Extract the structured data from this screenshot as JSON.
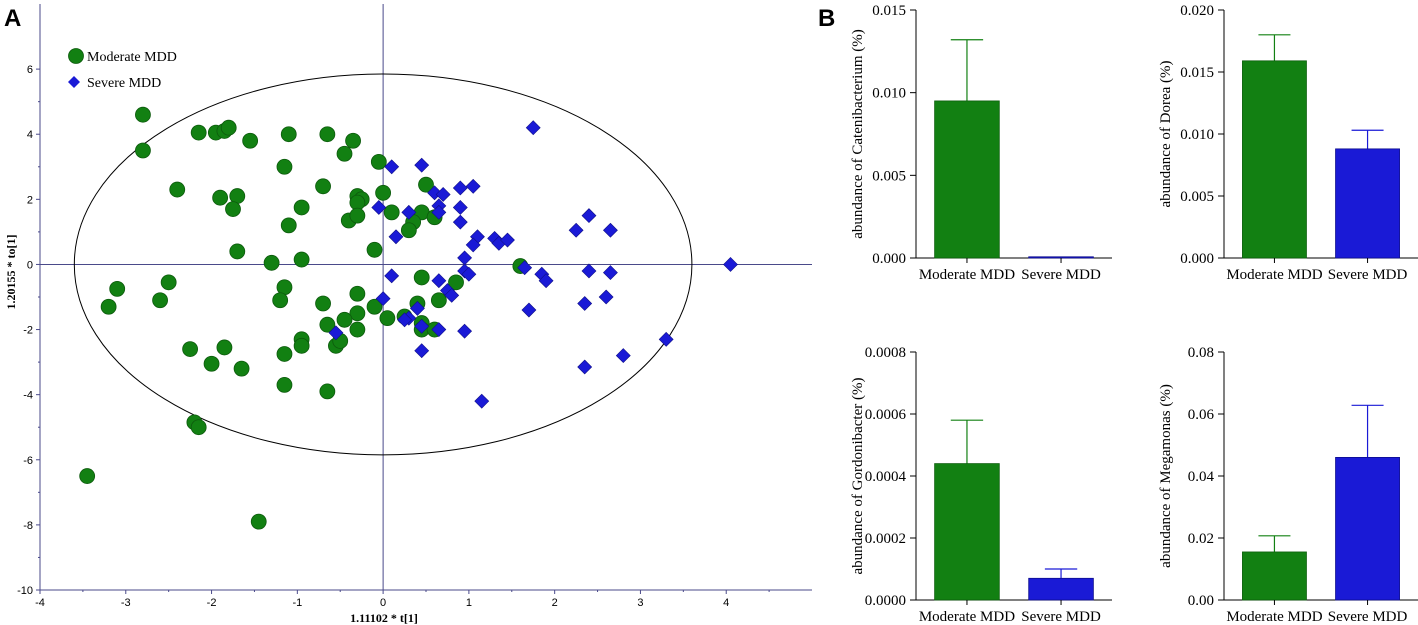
{
  "panel_labels": {
    "a": "A",
    "b": "B"
  },
  "colors": {
    "moderate": "#128012",
    "severe": "#1a1ad6",
    "axis": "#4a4a8a"
  },
  "chart_data": [
    {
      "type": "scatter",
      "title": "",
      "xlabel": "1.11102 * t[1]",
      "ylabel": "1.20155 * to[1]",
      "xlim": [
        -4,
        5
      ],
      "ylim": [
        -10,
        8
      ],
      "xticks": [
        -4,
        -3,
        -2,
        -1,
        0,
        1,
        2,
        3,
        4
      ],
      "yticks": [
        -10,
        -8,
        -6,
        -4,
        -2,
        0,
        2,
        4,
        6
      ],
      "ellipse": {
        "cx": 0,
        "cy": 0,
        "rx": 3.6,
        "ry": 5.85
      },
      "legend": {
        "position": "top-left",
        "entries": [
          "Moderate MDD",
          "Severe MDD"
        ]
      },
      "series": [
        {
          "name": "Moderate MDD",
          "marker": "circle",
          "points": [
            [
              -2.8,
              4.6
            ],
            [
              -2.8,
              3.5
            ],
            [
              -2.15,
              4.05
            ],
            [
              -1.95,
              4.05
            ],
            [
              -1.85,
              4.1
            ],
            [
              -1.8,
              4.2
            ],
            [
              -1.55,
              3.8
            ],
            [
              -1.1,
              4.0
            ],
            [
              -0.65,
              4.0
            ],
            [
              -0.35,
              3.8
            ],
            [
              -0.45,
              3.4
            ],
            [
              -1.15,
              3.0
            ],
            [
              -0.05,
              3.15
            ],
            [
              -2.4,
              2.3
            ],
            [
              -1.9,
              2.05
            ],
            [
              -1.7,
              2.1
            ],
            [
              -1.75,
              1.7
            ],
            [
              -0.95,
              1.75
            ],
            [
              -1.1,
              1.2
            ],
            [
              -0.7,
              2.4
            ],
            [
              -0.3,
              2.1
            ],
            [
              -0.25,
              2.0
            ],
            [
              -0.3,
              1.9
            ],
            [
              0.0,
              2.2
            ],
            [
              0.1,
              1.6
            ],
            [
              0.5,
              2.45
            ],
            [
              0.45,
              1.6
            ],
            [
              0.6,
              1.45
            ],
            [
              -0.4,
              1.35
            ],
            [
              -0.3,
              1.5
            ],
            [
              -0.1,
              0.45
            ],
            [
              0.35,
              1.3
            ],
            [
              0.3,
              1.05
            ],
            [
              -1.7,
              0.4
            ],
            [
              -1.3,
              0.05
            ],
            [
              -0.95,
              0.15
            ],
            [
              -1.15,
              -0.7
            ],
            [
              -1.2,
              -1.1
            ],
            [
              -0.7,
              -1.2
            ],
            [
              -0.65,
              -1.85
            ],
            [
              -0.3,
              -0.9
            ],
            [
              -0.1,
              -1.3
            ],
            [
              -0.3,
              -1.5
            ],
            [
              -0.45,
              -1.7
            ],
            [
              -0.3,
              -2.0
            ],
            [
              0.05,
              -1.65
            ],
            [
              0.25,
              -1.6
            ],
            [
              0.4,
              -1.2
            ],
            [
              0.45,
              -0.4
            ],
            [
              0.65,
              -1.1
            ],
            [
              0.85,
              -0.55
            ],
            [
              0.45,
              -1.8
            ],
            [
              0.45,
              -2.0
            ],
            [
              0.6,
              -2.0
            ],
            [
              1.6,
              -0.05
            ],
            [
              -3.1,
              -0.75
            ],
            [
              -3.2,
              -1.3
            ],
            [
              -2.5,
              -0.55
            ],
            [
              -2.6,
              -1.1
            ],
            [
              -2.25,
              -2.6
            ],
            [
              -1.85,
              -2.55
            ],
            [
              -2.0,
              -3.05
            ],
            [
              -1.65,
              -3.2
            ],
            [
              -1.15,
              -2.75
            ],
            [
              -0.95,
              -2.3
            ],
            [
              -0.95,
              -2.5
            ],
            [
              -0.55,
              -2.5
            ],
            [
              -0.5,
              -2.35
            ],
            [
              -1.15,
              -3.7
            ],
            [
              -0.65,
              -3.9
            ],
            [
              -2.2,
              -4.85
            ],
            [
              -2.15,
              -5.0
            ],
            [
              -3.45,
              -6.5
            ],
            [
              -1.45,
              -7.9
            ]
          ]
        },
        {
          "name": "Severe MDD",
          "marker": "diamond",
          "points": [
            [
              1.75,
              4.2
            ],
            [
              0.1,
              3.0
            ],
            [
              0.45,
              3.05
            ],
            [
              0.6,
              2.2
            ],
            [
              0.7,
              2.15
            ],
            [
              0.9,
              2.35
            ],
            [
              1.05,
              2.4
            ],
            [
              0.65,
              1.8
            ],
            [
              0.65,
              1.6
            ],
            [
              0.9,
              1.75
            ],
            [
              -0.05,
              1.75
            ],
            [
              0.3,
              1.6
            ],
            [
              0.15,
              0.85
            ],
            [
              0.9,
              1.3
            ],
            [
              1.1,
              0.85
            ],
            [
              1.05,
              0.6
            ],
            [
              1.3,
              0.8
            ],
            [
              1.35,
              0.65
            ],
            [
              1.45,
              0.75
            ],
            [
              0.95,
              0.2
            ],
            [
              0.95,
              -0.2
            ],
            [
              1.0,
              -0.3
            ],
            [
              0.65,
              -0.5
            ],
            [
              0.75,
              -0.8
            ],
            [
              0.8,
              -0.95
            ],
            [
              0.1,
              -0.35
            ],
            [
              0.0,
              -1.05
            ],
            [
              0.4,
              -1.35
            ],
            [
              0.3,
              -1.65
            ],
            [
              0.25,
              -1.7
            ],
            [
              0.45,
              -1.9
            ],
            [
              0.65,
              -2.0
            ],
            [
              0.95,
              -2.05
            ],
            [
              -0.55,
              -2.1
            ],
            [
              0.45,
              -2.65
            ],
            [
              1.15,
              -4.2
            ],
            [
              1.65,
              -0.1
            ],
            [
              1.85,
              -0.3
            ],
            [
              1.9,
              -0.5
            ],
            [
              1.7,
              -1.4
            ],
            [
              2.25,
              1.05
            ],
            [
              2.4,
              1.5
            ],
            [
              2.65,
              1.05
            ],
            [
              2.4,
              -0.2
            ],
            [
              2.65,
              -0.25
            ],
            [
              2.35,
              -1.2
            ],
            [
              2.6,
              -1.0
            ],
            [
              2.35,
              -3.15
            ],
            [
              2.8,
              -2.8
            ],
            [
              3.3,
              -2.3
            ],
            [
              4.05,
              0.0
            ]
          ]
        }
      ]
    },
    {
      "type": "bar",
      "title": "",
      "ylabel": "abundance of Catenibacterium  (%)",
      "categories": [
        "Moderate MDD",
        "Severe MDD"
      ],
      "values": [
        0.0095,
        3e-05
      ],
      "errors": [
        0.0037,
        2e-05
      ],
      "ylim": [
        0,
        0.015
      ],
      "yticks": [
        0.0,
        0.005,
        0.01,
        0.015
      ],
      "ytick_labels": [
        "0.000",
        "0.005",
        "0.010",
        "0.015"
      ]
    },
    {
      "type": "bar",
      "title": "",
      "ylabel": "abundance of Dorea  (%)",
      "categories": [
        "Moderate MDD",
        "Severe MDD"
      ],
      "values": [
        0.0159,
        0.0088
      ],
      "errors": [
        0.0021,
        0.0015
      ],
      "ylim": [
        0,
        0.02
      ],
      "yticks": [
        0.0,
        0.005,
        0.01,
        0.015,
        0.02
      ],
      "ytick_labels": [
        "0.000",
        "0.005",
        "0.010",
        "0.015",
        "0.020"
      ]
    },
    {
      "type": "bar",
      "title": "",
      "ylabel": "abundance of Gordonibacter  (%)",
      "categories": [
        "Moderate MDD",
        "Severe MDD"
      ],
      "values": [
        0.00044,
        7e-05
      ],
      "errors": [
        0.00014,
        3e-05
      ],
      "ylim": [
        0,
        0.0008
      ],
      "yticks": [
        0.0,
        0.0002,
        0.0004,
        0.0006,
        0.0008
      ],
      "ytick_labels": [
        "0.0000",
        "0.0002",
        "0.0004",
        "0.0006",
        "0.0008"
      ]
    },
    {
      "type": "bar",
      "title": "",
      "ylabel": "abundance of Megamonas  (%)",
      "categories": [
        "Moderate MDD",
        "Severe MDD"
      ],
      "values": [
        0.0155,
        0.046
      ],
      "errors": [
        0.0052,
        0.0168
      ],
      "ylim": [
        0,
        0.08
      ],
      "yticks": [
        0.0,
        0.02,
        0.04,
        0.06,
        0.08
      ],
      "ytick_labels": [
        "0.00",
        "0.02",
        "0.04",
        "0.06",
        "0.08"
      ]
    }
  ]
}
